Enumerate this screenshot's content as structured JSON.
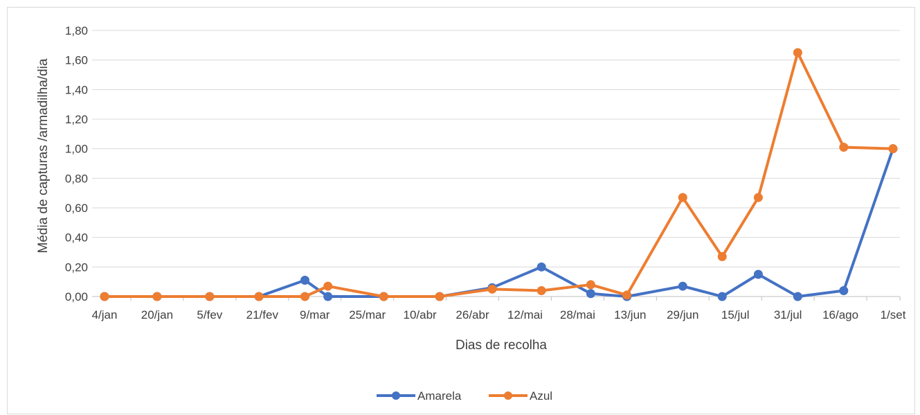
{
  "chart_data": {
    "type": "line",
    "title": "",
    "xlabel": "Dias de recolha",
    "ylabel": "Média de capturas /armadilha/dia",
    "x_tick_labels": [
      "4/jan",
      "20/jan",
      "5/fev",
      "21/fev",
      "9/mar",
      "25/mar",
      "10/abr",
      "26/abr",
      "12/mai",
      "28/mai",
      "13/jun",
      "29/jun",
      "15/jul",
      "31/jul",
      "16/ago",
      "1/set"
    ],
    "y_tick_labels": [
      "0,00",
      "0,20",
      "0,40",
      "0,60",
      "0,80",
      "1,00",
      "1,20",
      "1,40",
      "1,60",
      "1,80"
    ],
    "ylim": [
      0,
      1.8
    ],
    "xlim": [
      "4/jan",
      "1/set"
    ],
    "grid": "horizontal",
    "legend_position": "bottom",
    "series": [
      {
        "name": "Amarela",
        "color": "#4472c4",
        "points": [
          {
            "x": "4/jan",
            "y": 0.0
          },
          {
            "x": "20/jan",
            "y": 0.0
          },
          {
            "x": "5/fev",
            "y": 0.0
          },
          {
            "x": "20/fev",
            "y": 0.0
          },
          {
            "x": "6/mar",
            "y": 0.11
          },
          {
            "x": "13/mar",
            "y": 0.0
          },
          {
            "x": "30/mar",
            "y": 0.0
          },
          {
            "x": "16/abr",
            "y": 0.0
          },
          {
            "x": "2/mai",
            "y": 0.06
          },
          {
            "x": "17/mai",
            "y": 0.2
          },
          {
            "x": "1/jun",
            "y": 0.02
          },
          {
            "x": "12/jun",
            "y": 0.0
          },
          {
            "x": "29/jun",
            "y": 0.07
          },
          {
            "x": "11/jul",
            "y": 0.0
          },
          {
            "x": "22/jul",
            "y": 0.15
          },
          {
            "x": "3/ago",
            "y": 0.0
          },
          {
            "x": "17/ago",
            "y": 0.04
          },
          {
            "x": "1/set",
            "y": 1.0
          }
        ]
      },
      {
        "name": "Azul",
        "color": "#ed7d31",
        "points": [
          {
            "x": "4/jan",
            "y": 0.0
          },
          {
            "x": "20/jan",
            "y": 0.0
          },
          {
            "x": "5/fev",
            "y": 0.0
          },
          {
            "x": "20/fev",
            "y": 0.0
          },
          {
            "x": "6/mar",
            "y": 0.0
          },
          {
            "x": "13/mar",
            "y": 0.07
          },
          {
            "x": "30/mar",
            "y": 0.0
          },
          {
            "x": "16/abr",
            "y": 0.0
          },
          {
            "x": "2/mai",
            "y": 0.05
          },
          {
            "x": "17/mai",
            "y": 0.04
          },
          {
            "x": "1/jun",
            "y": 0.08
          },
          {
            "x": "12/jun",
            "y": 0.01
          },
          {
            "x": "29/jun",
            "y": 0.67
          },
          {
            "x": "11/jul",
            "y": 0.27
          },
          {
            "x": "22/jul",
            "y": 0.67
          },
          {
            "x": "3/ago",
            "y": 1.65
          },
          {
            "x": "17/ago",
            "y": 1.01
          },
          {
            "x": "1/set",
            "y": 1.0
          }
        ]
      }
    ]
  }
}
